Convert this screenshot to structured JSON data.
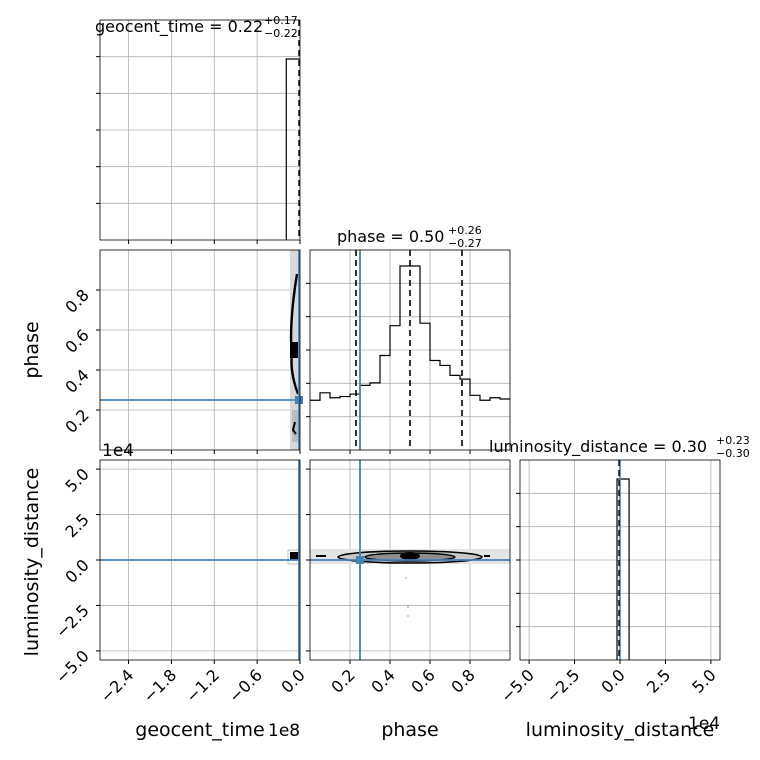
{
  "chart_data": {
    "type": "corner",
    "parameters": [
      "geocent_time",
      "phase",
      "luminosity_distance"
    ],
    "titles": [
      {
        "param": "geocent_time",
        "label": "geocent_time",
        "median": "0.22",
        "plus": "+0.17",
        "minus": "−0.22"
      },
      {
        "param": "phase",
        "label": "phase",
        "median": "0.50",
        "plus": "+0.26",
        "minus": "−0.27"
      },
      {
        "param": "luminosity_distance",
        "label": "luminosity_distance",
        "median": "0.30",
        "plus": "+0.23",
        "minus": "−0.30"
      }
    ],
    "axis_labels": {
      "x": [
        "geocent_time",
        "phase",
        "luminosity_distance"
      ],
      "y": [
        "phase",
        "luminosity_distance"
      ]
    },
    "offsets": {
      "geocent_x": "1e8",
      "lumdist_y": "1e4",
      "lumdist_x": "1e4"
    },
    "ticks": {
      "geocent_time": {
        "values": [
          -2.4,
          -1.8,
          -1.2,
          -0.6,
          0.0
        ],
        "labels": [
          "−2.4",
          "−1.8",
          "−1.2",
          "−0.6",
          "0.0"
        ],
        "range": [
          -2.8,
          0.0
        ]
      },
      "phase": {
        "values": [
          0.2,
          0.4,
          0.6,
          0.8
        ],
        "labels": [
          "0.2",
          "0.4",
          "0.6",
          "0.8"
        ],
        "range": [
          0.0,
          1.0
        ]
      },
      "luminosity_distance": {
        "values": [
          -5.0,
          -2.5,
          0.0,
          2.5,
          5.0
        ],
        "labels": [
          "−5.0",
          "−2.5",
          "0.0",
          "2.5",
          "5.0"
        ],
        "range": [
          -5.5,
          5.5
        ]
      }
    },
    "truths": {
      "geocent_time": 0.0,
      "phase": 0.25,
      "luminosity_distance": 0.0
    },
    "phase_hist": {
      "edges": [
        0.0,
        0.05,
        0.1,
        0.15,
        0.2,
        0.25,
        0.3,
        0.35,
        0.4,
        0.45,
        0.5,
        0.55,
        0.6,
        0.65,
        0.7,
        0.75,
        0.8,
        0.85,
        0.9,
        0.95,
        1.0
      ],
      "counts": [
        0.4,
        0.46,
        0.42,
        0.43,
        0.45,
        0.52,
        0.54,
        0.76,
        1.0,
        1.48,
        1.48,
        1.02,
        0.72,
        0.68,
        0.6,
        0.57,
        0.44,
        0.4,
        0.42,
        0.41
      ],
      "quantiles": [
        0.23,
        0.5,
        0.76
      ]
    },
    "lumdist_hist": {
      "edges": [
        -0.1,
        0.0,
        0.5
      ],
      "counts": [
        1,
        1
      ],
      "quantiles": [
        0.0
      ]
    },
    "geocent_hist": {
      "edges": [
        -0.08,
        0.0
      ],
      "counts": [
        1
      ],
      "quantiles": [
        0.0
      ]
    }
  },
  "colors": {
    "truth": "#4682b4",
    "hist": "#000000",
    "grid": "#b0b0b0",
    "contour": "#000000"
  }
}
